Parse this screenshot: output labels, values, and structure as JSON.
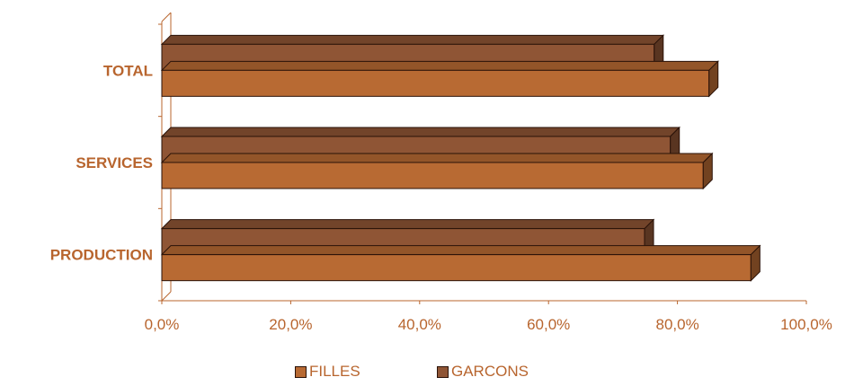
{
  "chart_data": {
    "type": "bar",
    "orientation": "horizontal",
    "three_d": true,
    "categories": [
      "TOTAL",
      "SERVICES",
      "PRODUCTION"
    ],
    "series": [
      {
        "name": "FILLES",
        "values": [
          84.9,
          84.0,
          91.4
        ],
        "color": "#B86A33"
      },
      {
        "name": "GARCONS",
        "values": [
          76.4,
          78.9,
          74.9
        ],
        "color": "#8F5535"
      }
    ],
    "xlim": [
      0,
      100
    ],
    "xticks": [
      "0,0%",
      "20,0%",
      "40,0%",
      "60,0%",
      "80,0%",
      "100,0%"
    ],
    "grid": false,
    "legend_position": "bottom",
    "axis_color": "#B8652E",
    "label_color": "#B8652E"
  }
}
